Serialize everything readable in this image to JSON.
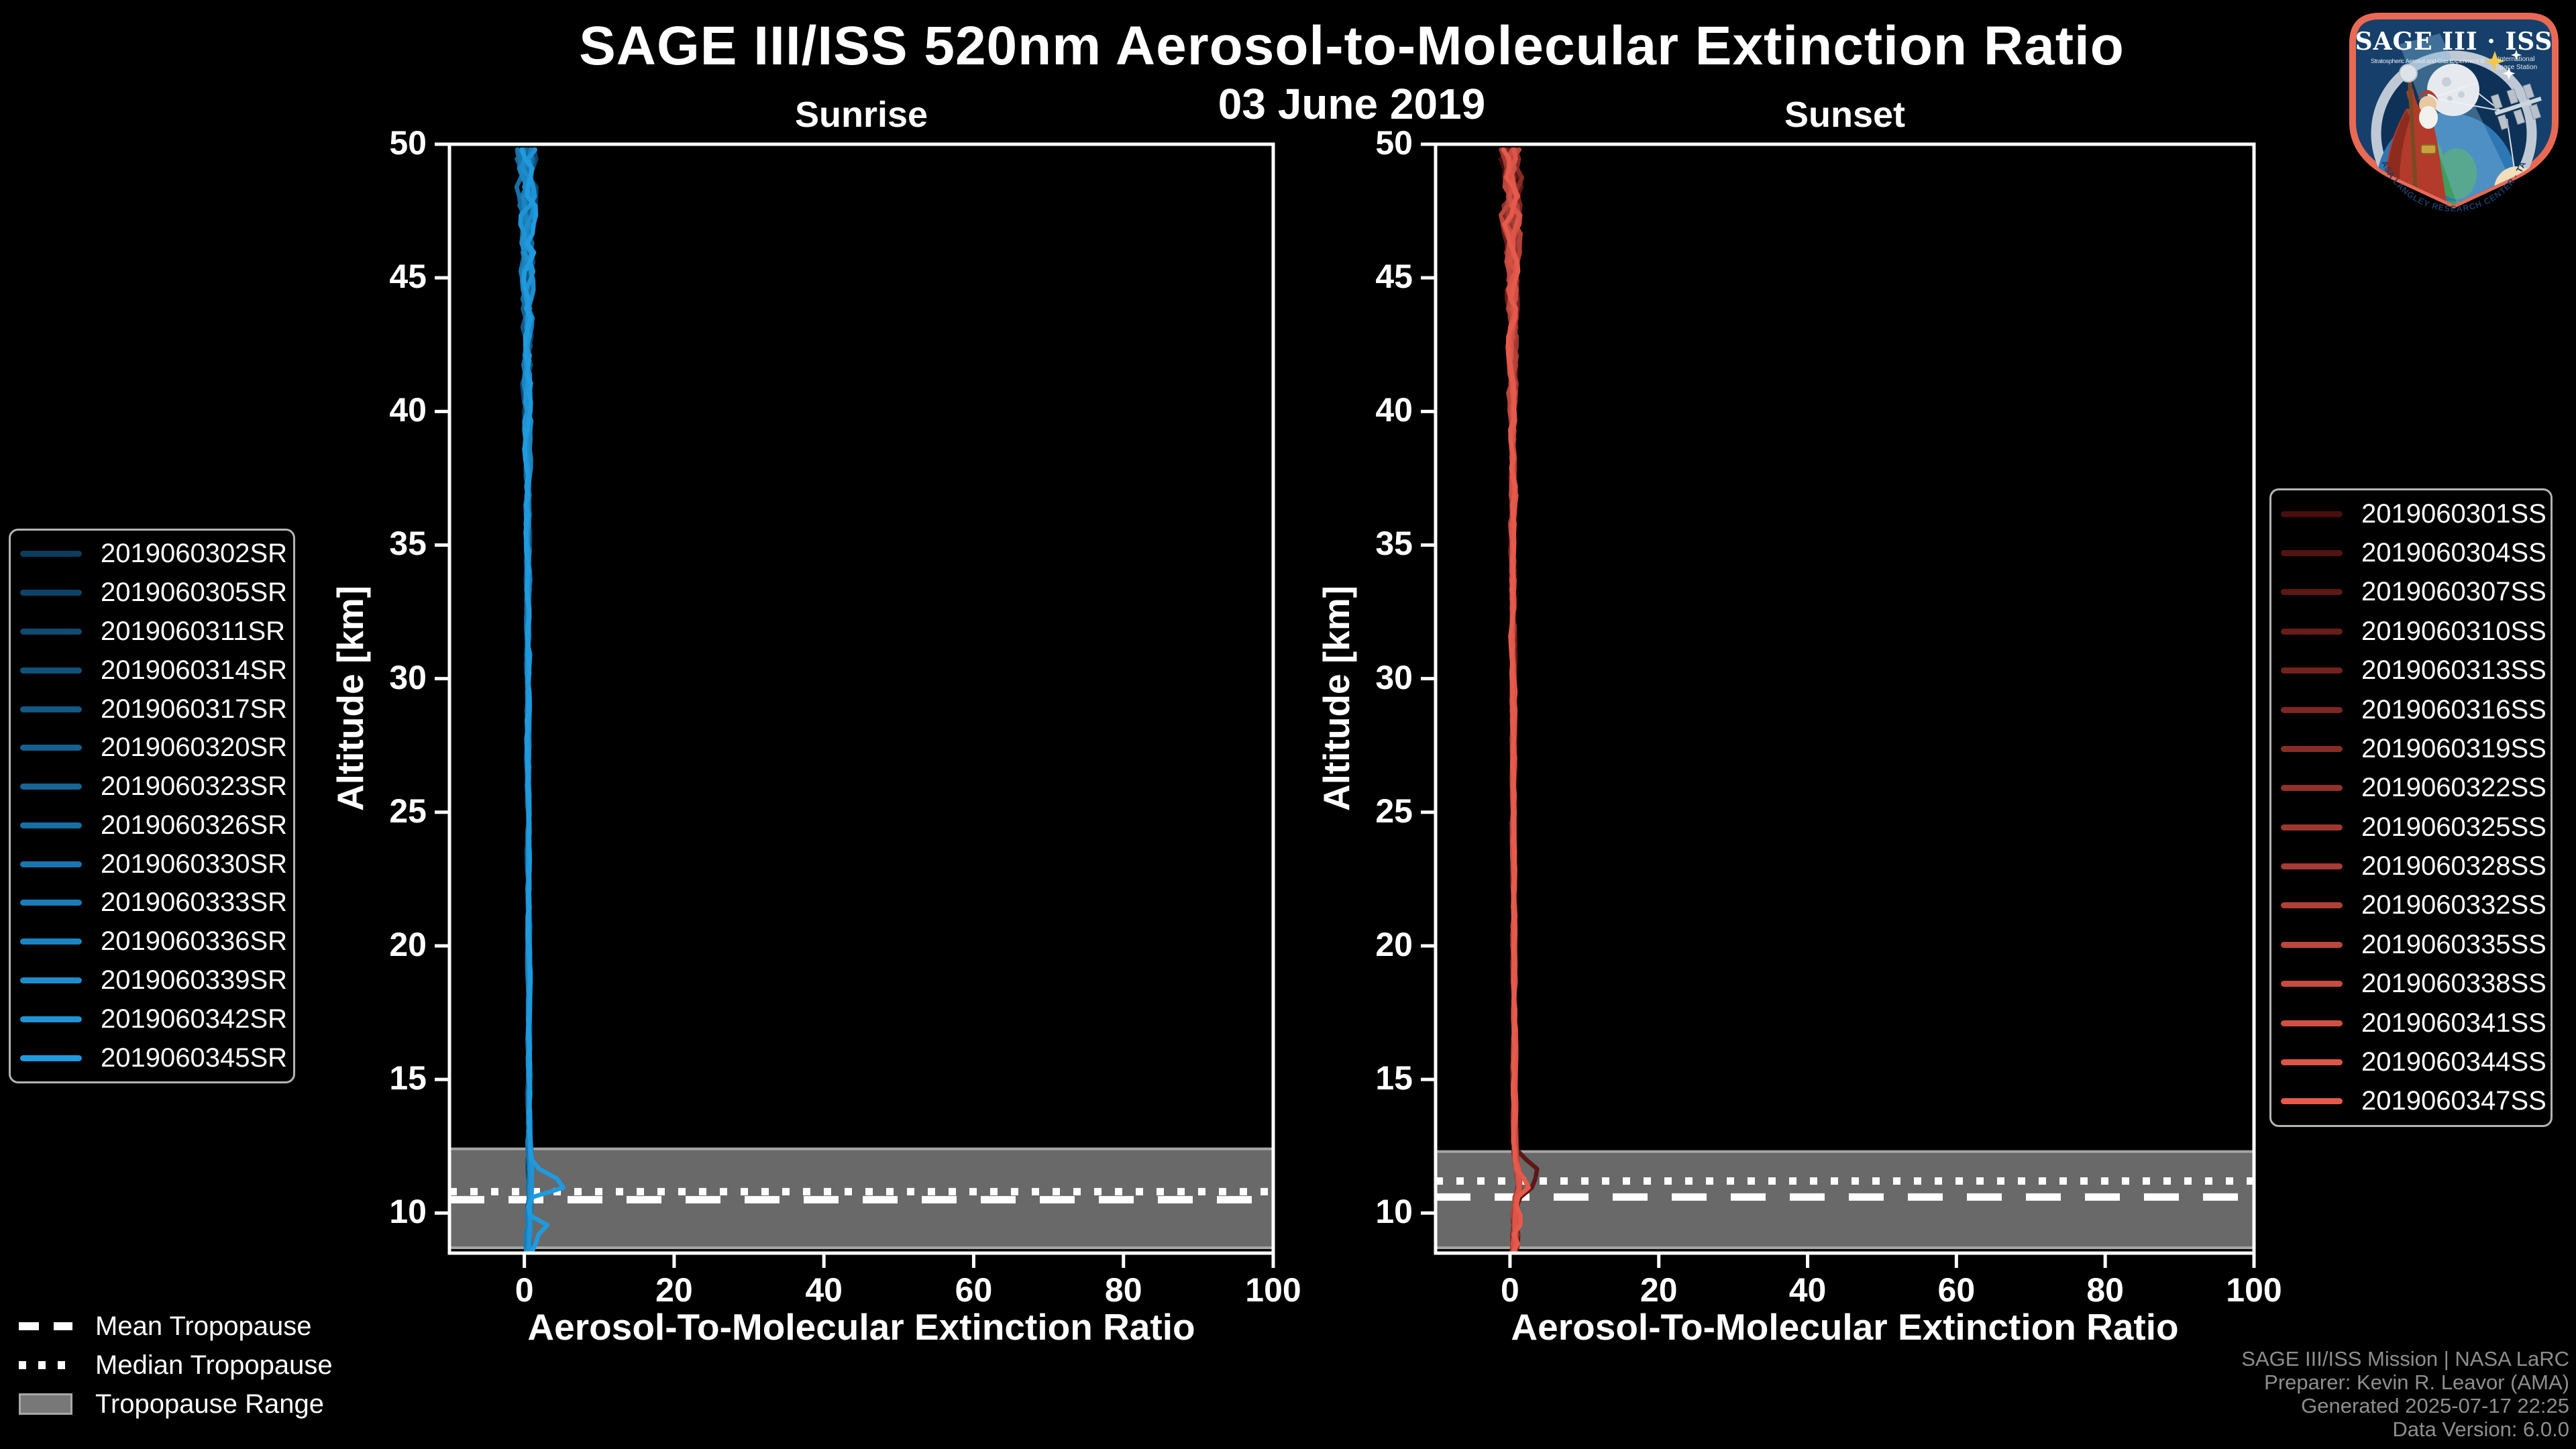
{
  "header": {
    "title": "SAGE III/ISS 520nm Aerosol-to-Molecular Extinction Ratio",
    "date": "03 June 2019"
  },
  "tropopause_legend": {
    "mean_label": "Mean Tropopause",
    "median_label": "Median Tropopause",
    "range_label": "Tropopause Range"
  },
  "credits": {
    "lines": [
      "SAGE III/ISS Mission | NASA LaRC",
      "Preparer: Kevin R. Leavor (AMA)",
      "Generated 2025-07-17 22:25",
      "Data Version: 6.0.0"
    ]
  },
  "logo": {
    "title": "SAGE III · ISS",
    "subtitle_left": "Stratospheric Aerosol and Gas Experiment III",
    "subtitle_right_1": "International",
    "subtitle_right_2": "Space Station",
    "ring_text": "BALL · NASA LANGLEY RESEARCH CENTER · TAS-I · ESA",
    "border_color": "#e86a55",
    "background_color": "#16406b"
  },
  "colors": {
    "background": "#000000",
    "axis": "#ffffff",
    "band_edge": "#a5a5a5",
    "credits_text": "#8e8e8e"
  },
  "chart_data": [
    {
      "type": "line",
      "title": "Sunrise",
      "xlabel": "Aerosol-To-Molecular Extinction Ratio",
      "ylabel": "Altitude [km]",
      "xlim": [
        -10,
        100
      ],
      "ylim": [
        8.5,
        50
      ],
      "xticks": [
        0,
        20,
        40,
        60,
        80,
        100
      ],
      "yticks": [
        10,
        15,
        20,
        25,
        30,
        35,
        40,
        45,
        50
      ],
      "legend_position": "left",
      "seed": 11,
      "tropopause": {
        "mean_km": 10.5,
        "median_km": 10.8,
        "range_km": [
          8.7,
          12.4
        ],
        "band_color": "#696969"
      },
      "series": [
        {
          "name": "2019060302SR",
          "color": "#0d3c5c",
          "profile": "main"
        },
        {
          "name": "2019060305SR",
          "color": "#0e4366",
          "profile": "main"
        },
        {
          "name": "2019060311SR",
          "color": "#104a70",
          "profile": "main"
        },
        {
          "name": "2019060314SR",
          "color": "#11527a",
          "profile": "main"
        },
        {
          "name": "2019060317SR",
          "color": "#135984",
          "profile": "main"
        },
        {
          "name": "2019060320SR",
          "color": "#14608e",
          "profile": "main"
        },
        {
          "name": "2019060323SR",
          "color": "#166798",
          "profile": "main"
        },
        {
          "name": "2019060326SR",
          "color": "#176fa3",
          "profile": "main"
        },
        {
          "name": "2019060330SR",
          "color": "#1976ad",
          "profile": "main"
        },
        {
          "name": "2019060333SR",
          "color": "#1a7db7",
          "profile": "main"
        },
        {
          "name": "2019060336SR",
          "color": "#1c84c1",
          "profile": "main"
        },
        {
          "name": "2019060339SR",
          "color": "#1d8ccb",
          "profile": "main"
        },
        {
          "name": "2019060342SR",
          "color": "#1f93d5",
          "profile": "main"
        },
        {
          "name": "2019060345SR",
          "color": "#209adf",
          "profile": "feature"
        }
      ],
      "profiles": {
        "main": [
          [
            8.5,
            0.45
          ],
          [
            9,
            0.5
          ],
          [
            9.5,
            0.55
          ],
          [
            10,
            0.6
          ],
          [
            10.5,
            0.65
          ],
          [
            11,
            0.7
          ],
          [
            11.5,
            0.7
          ],
          [
            12,
            0.7
          ],
          [
            13,
            0.65
          ],
          [
            14,
            0.65
          ],
          [
            16,
            0.6
          ],
          [
            18,
            0.6
          ],
          [
            20,
            0.6
          ],
          [
            22,
            0.55
          ],
          [
            24,
            0.55
          ],
          [
            26,
            0.5
          ],
          [
            28,
            0.5
          ],
          [
            30,
            0.5
          ],
          [
            32,
            0.45
          ],
          [
            34,
            0.45
          ],
          [
            36,
            0.4
          ],
          [
            38,
            0.4
          ],
          [
            40,
            0.4
          ],
          [
            42,
            0.35
          ],
          [
            44,
            0.35
          ],
          [
            46,
            0.35
          ],
          [
            48,
            0.35
          ],
          [
            50,
            0.35
          ]
        ],
        "feature": [
          [
            8.5,
            0.6
          ],
          [
            8.8,
            1.5
          ],
          [
            9.1,
            0.5
          ],
          [
            9.35,
            4.3
          ],
          [
            9.9,
            0.6
          ],
          [
            10.3,
            0.5
          ],
          [
            10.6,
            1.2
          ],
          [
            11.05,
            6.4
          ],
          [
            11.5,
            2.5
          ],
          [
            11.9,
            0.8
          ],
          [
            12.5,
            0.7
          ],
          [
            13,
            0.65
          ],
          [
            14,
            0.65
          ],
          [
            16,
            0.6
          ],
          [
            18,
            0.6
          ],
          [
            20,
            0.6
          ],
          [
            25,
            0.55
          ],
          [
            30,
            0.5
          ],
          [
            35,
            0.45
          ],
          [
            40,
            0.4
          ],
          [
            45,
            0.35
          ],
          [
            50,
            0.35
          ]
        ]
      },
      "noise_envelope": [
        [
          8.5,
          0.3
        ],
        [
          9.5,
          0.25
        ],
        [
          11,
          0.2
        ],
        [
          13,
          0.15
        ],
        [
          16,
          0.12
        ],
        [
          20,
          0.12
        ],
        [
          25,
          0.13
        ],
        [
          30,
          0.16
        ],
        [
          34,
          0.2
        ],
        [
          38,
          0.28
        ],
        [
          42,
          0.4
        ],
        [
          45,
          0.6
        ],
        [
          47,
          0.8
        ],
        [
          50,
          1.0
        ]
      ]
    },
    {
      "type": "line",
      "title": "Sunset",
      "xlabel": "Aerosol-To-Molecular Extinction Ratio",
      "ylabel": "Altitude [km]",
      "xlim": [
        -10,
        100
      ],
      "ylim": [
        8.5,
        50
      ],
      "xticks": [
        0,
        20,
        40,
        60,
        80,
        100
      ],
      "yticks": [
        10,
        15,
        20,
        25,
        30,
        35,
        40,
        45,
        50
      ],
      "legend_position": "right",
      "seed": 23,
      "tropopause": {
        "mean_km": 10.6,
        "median_km": 11.2,
        "range_km": [
          8.7,
          12.3
        ],
        "band_color": "#696969"
      },
      "series": [
        {
          "name": "2019060301SS",
          "color": "#470e0e",
          "profile": "main"
        },
        {
          "name": "2019060304SS",
          "color": "#521312",
          "profile": "main"
        },
        {
          "name": "2019060307SS",
          "color": "#5c1816",
          "profile": "feature"
        },
        {
          "name": "2019060310SS",
          "color": "#671d1a",
          "profile": "main"
        },
        {
          "name": "2019060313SS",
          "color": "#71221f",
          "profile": "main"
        },
        {
          "name": "2019060316SS",
          "color": "#7c2723",
          "profile": "main"
        },
        {
          "name": "2019060319SS",
          "color": "#862c27",
          "profile": "main"
        },
        {
          "name": "2019060322SS",
          "color": "#91312b",
          "profile": "main"
        },
        {
          "name": "2019060325SS",
          "color": "#9c372f",
          "profile": "main"
        },
        {
          "name": "2019060328SS",
          "color": "#a63c33",
          "profile": "main"
        },
        {
          "name": "2019060332SS",
          "color": "#b14137",
          "profile": "main"
        },
        {
          "name": "2019060335SS",
          "color": "#bb463c",
          "profile": "main"
        },
        {
          "name": "2019060338SS",
          "color": "#c64b40",
          "profile": "main"
        },
        {
          "name": "2019060341SS",
          "color": "#d05044",
          "profile": "main"
        },
        {
          "name": "2019060344SS",
          "color": "#db5548",
          "profile": "main"
        },
        {
          "name": "2019060347SS",
          "color": "#e65a4c",
          "profile": "feature2"
        }
      ],
      "profiles": {
        "main": [
          [
            8.5,
            0.5
          ],
          [
            9,
            0.6
          ],
          [
            9.5,
            0.7
          ],
          [
            10,
            0.65
          ],
          [
            10.5,
            0.8
          ],
          [
            11,
            1.3
          ],
          [
            11.5,
            1.1
          ],
          [
            12,
            0.8
          ],
          [
            12.5,
            0.7
          ],
          [
            13,
            0.65
          ],
          [
            14,
            0.6
          ],
          [
            16,
            0.6
          ],
          [
            18,
            0.6
          ],
          [
            20,
            0.55
          ],
          [
            22,
            0.55
          ],
          [
            24,
            0.5
          ],
          [
            26,
            0.5
          ],
          [
            28,
            0.5
          ],
          [
            30,
            0.45
          ],
          [
            32,
            0.45
          ],
          [
            34,
            0.4
          ],
          [
            36,
            0.4
          ],
          [
            38,
            0.4
          ],
          [
            40,
            0.35
          ],
          [
            42,
            0.35
          ],
          [
            44,
            0.35
          ],
          [
            46,
            0.3
          ],
          [
            48,
            0.3
          ],
          [
            50,
            0.3
          ]
        ],
        "feature": [
          [
            8.5,
            0.5
          ],
          [
            9,
            0.8
          ],
          [
            9.5,
            0.6
          ],
          [
            10,
            0.7
          ],
          [
            10.5,
            1.0
          ],
          [
            10.9,
            2.8
          ],
          [
            11.7,
            3.5
          ],
          [
            12.3,
            0.9
          ],
          [
            12.8,
            0.7
          ],
          [
            13.5,
            0.6
          ],
          [
            14,
            0.6
          ],
          [
            16,
            0.6
          ],
          [
            20,
            0.55
          ],
          [
            25,
            0.5
          ],
          [
            30,
            0.45
          ],
          [
            35,
            0.4
          ],
          [
            40,
            0.35
          ],
          [
            45,
            0.3
          ],
          [
            50,
            0.3
          ]
        ],
        "feature2": [
          [
            8.5,
            0.6
          ],
          [
            8.8,
            1.4
          ],
          [
            9.2,
            0.7
          ],
          [
            9.7,
            1.9
          ],
          [
            10.1,
            0.8
          ],
          [
            10.6,
            1.2
          ],
          [
            11.0,
            3.0
          ],
          [
            11.5,
            1.3
          ],
          [
            11.9,
            0.8
          ],
          [
            12.5,
            0.7
          ],
          [
            13,
            0.65
          ],
          [
            14,
            0.6
          ],
          [
            16,
            0.6
          ],
          [
            20,
            0.55
          ],
          [
            25,
            0.5
          ],
          [
            30,
            0.45
          ],
          [
            35,
            0.4
          ],
          [
            40,
            0.35
          ],
          [
            45,
            0.3
          ],
          [
            50,
            0.3
          ]
        ]
      },
      "noise_envelope": [
        [
          8.5,
          0.3
        ],
        [
          9.5,
          0.25
        ],
        [
          11,
          0.2
        ],
        [
          13,
          0.15
        ],
        [
          16,
          0.12
        ],
        [
          20,
          0.12
        ],
        [
          25,
          0.13
        ],
        [
          30,
          0.16
        ],
        [
          34,
          0.2
        ],
        [
          38,
          0.28
        ],
        [
          42,
          0.4
        ],
        [
          45,
          0.6
        ],
        [
          47,
          0.8
        ],
        [
          50,
          1.0
        ]
      ]
    }
  ]
}
